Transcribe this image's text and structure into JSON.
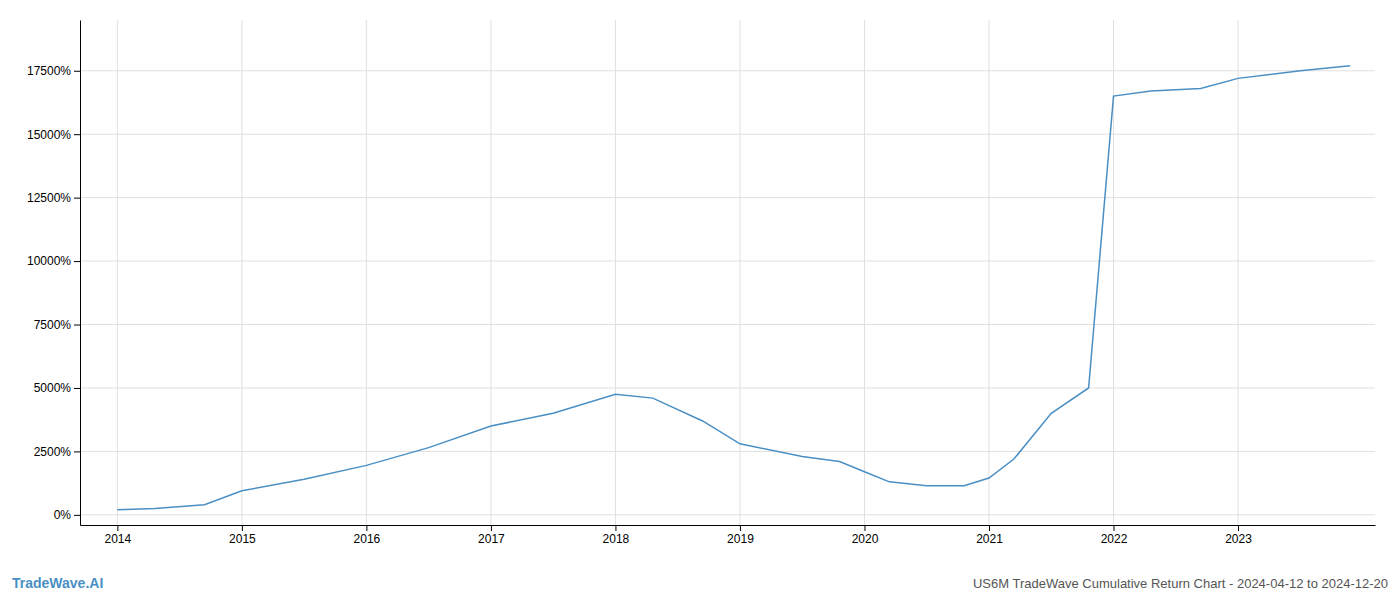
{
  "chart_data": {
    "type": "line",
    "title": "US6M TradeWave Cumulative Return Chart - 2024-04-12 to 2024-12-20",
    "annotations": [
      "TradeWave.AI"
    ],
    "x": [
      2014.0,
      2014.3,
      2014.7,
      2015.0,
      2015.5,
      2016.0,
      2016.5,
      2017.0,
      2017.5,
      2018.0,
      2018.3,
      2018.7,
      2019.0,
      2019.5,
      2019.8,
      2020.0,
      2020.2,
      2020.5,
      2020.8,
      2021.0,
      2021.2,
      2021.5,
      2021.8,
      2022.0,
      2022.3,
      2022.7,
      2023.0,
      2023.5,
      2023.9
    ],
    "values": [
      200,
      250,
      400,
      950,
      1400,
      1950,
      2650,
      3500,
      4000,
      4750,
      4600,
      3700,
      2800,
      2300,
      2100,
      1700,
      1300,
      1150,
      1150,
      1450,
      2200,
      4000,
      5000,
      16500,
      16700,
      16800,
      17200,
      17500,
      17700
    ],
    "color": "#4a8fc4",
    "xlim": [
      2013.7,
      2024.1
    ],
    "ylim": [
      -400,
      19500
    ],
    "xticks": [
      2014,
      2015,
      2016,
      2017,
      2018,
      2019,
      2020,
      2021,
      2022,
      2023
    ],
    "yticks": [
      {
        "value": 0,
        "label": "0%"
      },
      {
        "value": 2500,
        "label": "2500%"
      },
      {
        "value": 5000,
        "label": "5000%"
      },
      {
        "value": 7500,
        "label": "7500%"
      },
      {
        "value": 10000,
        "label": "10000%"
      },
      {
        "value": 12500,
        "label": "12500%"
      },
      {
        "value": 15000,
        "label": "15000%"
      },
      {
        "value": 17500,
        "label": "17500%"
      }
    ],
    "grid": true
  }
}
